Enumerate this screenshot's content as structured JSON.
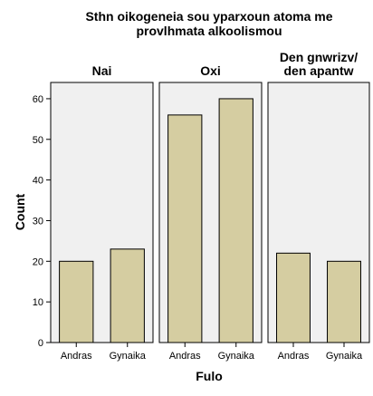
{
  "chart_data": {
    "type": "bar",
    "title_lines": [
      "Sthn oikogeneia sou yparxoun atoma me",
      "provlhmata alkoolismou"
    ],
    "xlabel": "Fulo",
    "ylabel": "Count",
    "ylim": [
      0,
      64
    ],
    "yticks": [
      0,
      10,
      20,
      30,
      40,
      50,
      60
    ],
    "categories": [
      "Andras",
      "Gynaika"
    ],
    "panels": [
      {
        "title_lines": [
          "Nai"
        ],
        "values": [
          20,
          23
        ]
      },
      {
        "title_lines": [
          "Oxi"
        ],
        "values": [
          56,
          60
        ]
      },
      {
        "title_lines": [
          "Den gnwrizv/",
          "den apantw"
        ],
        "values": [
          22,
          20
        ]
      }
    ],
    "grid": false,
    "bar_color": "#d5cda1",
    "bar_stroke": "#000000",
    "panel_background": "#f0f0f0"
  }
}
